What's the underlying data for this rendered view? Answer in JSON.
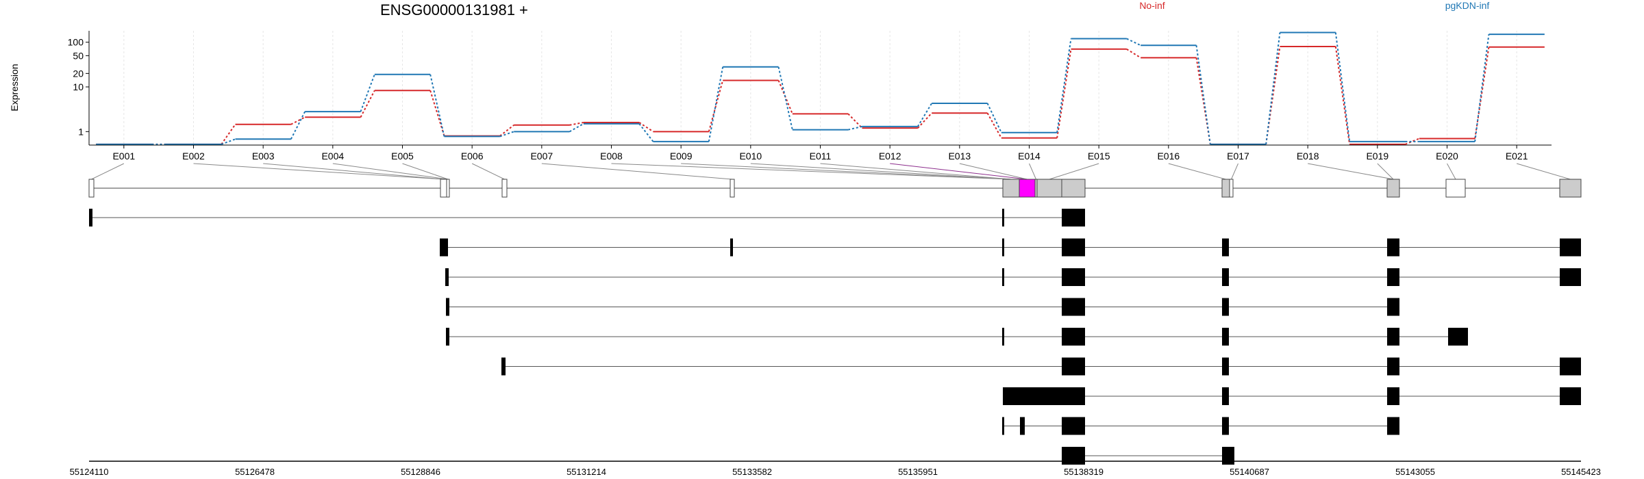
{
  "chart_data": {
    "type": "line",
    "title": "ENSG00000131981 +",
    "ylabel": "Expression",
    "yscale": "log",
    "ylim": [
      0.5,
      180
    ],
    "yticks": [
      1,
      10,
      20,
      50,
      100
    ],
    "categories": [
      "E001",
      "E002",
      "E003",
      "E004",
      "E005",
      "E006",
      "E007",
      "E008",
      "E009",
      "E010",
      "E011",
      "E012",
      "E013",
      "E014",
      "E015",
      "E016",
      "E017",
      "E018",
      "E019",
      "E020",
      "E021"
    ],
    "series": [
      {
        "name": "No-inf",
        "color": "#d62728",
        "values": [
          0.52,
          0.52,
          1.45,
          2.1,
          8.3,
          0.8,
          1.4,
          1.6,
          1.0,
          14,
          2.5,
          1.2,
          2.6,
          0.72,
          70,
          45,
          0.52,
          80,
          0.52,
          0.7,
          78
        ]
      },
      {
        "name": "pgKDN-inf",
        "color": "#1f77b4",
        "values": [
          0.52,
          0.52,
          0.68,
          2.8,
          19,
          0.78,
          1.0,
          1.5,
          0.6,
          28,
          1.1,
          1.3,
          4.3,
          0.95,
          120,
          85,
          0.52,
          165,
          0.6,
          0.6,
          150
        ]
      }
    ],
    "grid": true,
    "legend_position": "top-right",
    "genomic_axis_ticks": [
      "55124110",
      "55126478",
      "55128846",
      "55131214",
      "55133582",
      "55135951",
      "55138319",
      "55140687",
      "55143055",
      "55145423"
    ],
    "gene_model": {
      "exons": [
        {
          "s": 0,
          "e": 7,
          "fill": "#ffffff"
        },
        {
          "s": 513,
          "e": 522,
          "fill": "#ffffff"
        },
        {
          "s": 522,
          "e": 526,
          "fill": "#ffffff"
        },
        {
          "s": 603,
          "e": 610,
          "fill": "#ffffff"
        },
        {
          "s": 936,
          "e": 942,
          "fill": "#ffffff"
        },
        {
          "s": 1334,
          "e": 1358,
          "fill": "#cccccc"
        },
        {
          "s": 1358,
          "e": 1381,
          "fill": "#ff00ff"
        },
        {
          "s": 1381,
          "e": 1384,
          "fill": "#cccccc"
        },
        {
          "s": 1384,
          "e": 1420,
          "fill": "#cccccc"
        },
        {
          "s": 1420,
          "e": 1454,
          "fill": "#cccccc"
        },
        {
          "s": 1654,
          "e": 1665,
          "fill": "#cccccc"
        },
        {
          "s": 1665,
          "e": 1670,
          "fill": "#ffffff"
        },
        {
          "s": 1895,
          "e": 1913,
          "fill": "#cccccc"
        },
        {
          "s": 1981,
          "e": 2009,
          "fill": "#ffffff"
        },
        {
          "s": 2147,
          "e": 2178,
          "fill": "#cccccc"
        }
      ],
      "links": [
        0,
        1,
        1,
        2,
        2,
        3,
        4,
        5,
        5,
        5,
        5,
        6,
        6,
        7,
        8,
        10,
        11,
        12,
        12,
        13,
        14
      ],
      "link_colors": {
        "11": "#8c2d8c"
      }
    },
    "transcripts": [
      {
        "exons": [
          [
            0,
            5
          ],
          [
            1333,
            1336
          ],
          [
            1420,
            1454
          ]
        ]
      },
      {
        "exons": [
          [
            512,
            524
          ],
          [
            936,
            940
          ],
          [
            1333,
            1336
          ],
          [
            1420,
            1454
          ],
          [
            1654,
            1664
          ],
          [
            1895,
            1913
          ],
          [
            2147,
            2178
          ]
        ]
      },
      {
        "exons": [
          [
            520,
            525
          ],
          [
            1333,
            1336
          ],
          [
            1420,
            1454
          ],
          [
            1654,
            1664
          ],
          [
            1895,
            1913
          ],
          [
            2147,
            2178
          ]
        ]
      },
      {
        "exons": [
          [
            521,
            526
          ],
          [
            1420,
            1454
          ],
          [
            1654,
            1664
          ],
          [
            1895,
            1913
          ]
        ]
      },
      {
        "exons": [
          [
            521,
            526
          ],
          [
            1333,
            1336
          ],
          [
            1420,
            1454
          ],
          [
            1654,
            1664
          ],
          [
            1895,
            1913
          ],
          [
            1984,
            2013
          ]
        ]
      },
      {
        "exons": [
          [
            602,
            608
          ],
          [
            1420,
            1454
          ],
          [
            1654,
            1664
          ],
          [
            1895,
            1913
          ],
          [
            2147,
            2178
          ]
        ]
      },
      {
        "exons": [
          [
            1334,
            1454
          ],
          [
            1654,
            1664
          ],
          [
            1895,
            1913
          ],
          [
            2147,
            2178
          ]
        ]
      },
      {
        "exons": [
          [
            1333,
            1336
          ],
          [
            1359,
            1366
          ],
          [
            1420,
            1454
          ],
          [
            1654,
            1664
          ],
          [
            1895,
            1913
          ]
        ]
      },
      {
        "exons": [
          [
            1420,
            1454
          ],
          [
            1654,
            1672
          ]
        ]
      }
    ]
  }
}
